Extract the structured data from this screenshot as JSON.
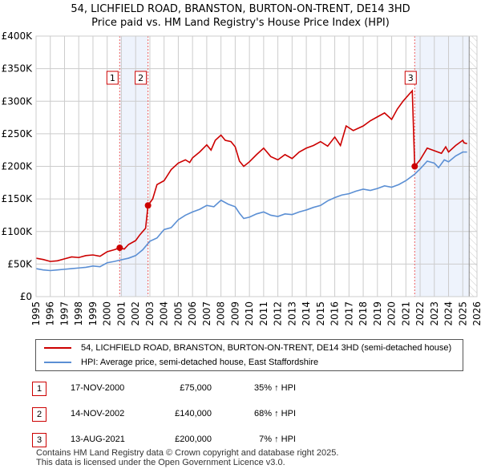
{
  "title": "54, LICHFIELD ROAD, BRANSTON, BURTON-ON-TRENT, DE14 3HD",
  "subtitle": "Price paid vs. HM Land Registry's House Price Index (HPI)",
  "chart_data": {
    "type": "line",
    "ylim": [
      0,
      400000
    ],
    "xlim": [
      1995,
      2026
    ],
    "grid": true,
    "yticks": [
      {
        "v": 0,
        "label": "£0"
      },
      {
        "v": 50000,
        "label": "£50K"
      },
      {
        "v": 100000,
        "label": "£100K"
      },
      {
        "v": 150000,
        "label": "£150K"
      },
      {
        "v": 200000,
        "label": "£200K"
      },
      {
        "v": 250000,
        "label": "£250K"
      },
      {
        "v": 300000,
        "label": "£300K"
      },
      {
        "v": 350000,
        "label": "£350K"
      },
      {
        "v": 400000,
        "label": "£400K"
      }
    ],
    "xticks": [
      "1995",
      "1996",
      "1997",
      "1998",
      "1999",
      "2000",
      "2001",
      "2002",
      "2003",
      "2004",
      "2005",
      "2006",
      "2007",
      "2008",
      "2009",
      "2010",
      "2011",
      "2012",
      "2013",
      "2014",
      "2015",
      "2016",
      "2017",
      "2018",
      "2019",
      "2020",
      "2021",
      "2022",
      "2023",
      "2024",
      "2025",
      "2026"
    ],
    "shaded": [
      [
        2000.88,
        2002.87
      ],
      [
        2021.62,
        2025.45
      ]
    ],
    "hatch_from": 2025.45,
    "series": [
      {
        "name": "54, LICHFIELD ROAD, BRANSTON, BURTON-ON-TRENT, DE14 3HD (semi-detached house)",
        "color": "#cc0000",
        "x": [
          1995,
          1995.5,
          1996,
          1996.5,
          1997,
          1997.5,
          1998,
          1998.5,
          1999,
          1999.5,
          2000,
          2000.5,
          2000.88,
          2001.2,
          2001.5,
          2002,
          2002.3,
          2002.7,
          2002.87,
          2003.2,
          2003.5,
          2004,
          2004.5,
          2005,
          2005.5,
          2005.8,
          2006,
          2006.5,
          2007,
          2007.3,
          2007.6,
          2008,
          2008.3,
          2008.7,
          2009,
          2009.3,
          2009.6,
          2010,
          2010.5,
          2011,
          2011.5,
          2012,
          2012.5,
          2013,
          2013.5,
          2014,
          2014.5,
          2015,
          2015.5,
          2016,
          2016.4,
          2016.8,
          2017.3,
          2018,
          2018.5,
          2019,
          2019.5,
          2020,
          2020.4,
          2020.8,
          2021.2,
          2021.45,
          2021.62,
          2022,
          2022.5,
          2023,
          2023.5,
          2023.8,
          2024,
          2024.5,
          2025,
          2025.1,
          2025.3
        ],
        "values": [
          59000,
          57000,
          54000,
          55000,
          58000,
          61000,
          60000,
          63000,
          64000,
          62000,
          69000,
          72000,
          75000,
          73000,
          80000,
          86000,
          95000,
          105000,
          140000,
          150000,
          172000,
          178000,
          195000,
          205000,
          210000,
          206000,
          213000,
          222000,
          233000,
          225000,
          240000,
          248000,
          240000,
          238000,
          230000,
          208000,
          200000,
          207000,
          218000,
          228000,
          215000,
          210000,
          218000,
          212000,
          222000,
          228000,
          232000,
          238000,
          231000,
          245000,
          232000,
          262000,
          255000,
          262000,
          270000,
          276000,
          282000,
          272000,
          288000,
          300000,
          310000,
          316000,
          200000,
          210000,
          228000,
          224000,
          220000,
          230000,
          222000,
          232000,
          240000,
          236000,
          235000
        ]
      },
      {
        "name": "HPI: Average price, semi-detached house, East Staffordshire",
        "color": "#5b8fd4",
        "x": [
          1995,
          1995.5,
          1996,
          1996.5,
          1997,
          1997.5,
          1998,
          1998.5,
          1999,
          1999.5,
          2000,
          2000.5,
          2000.88,
          2001.5,
          2002,
          2002.5,
          2003,
          2003.5,
          2004,
          2004.5,
          2005,
          2005.5,
          2006,
          2006.5,
          2007,
          2007.5,
          2008,
          2008.5,
          2009,
          2009.3,
          2009.6,
          2010,
          2010.5,
          2011,
          2011.5,
          2012,
          2012.5,
          2013,
          2013.5,
          2014,
          2014.5,
          2015,
          2015.5,
          2016,
          2016.5,
          2017,
          2017.5,
          2018,
          2018.5,
          2019,
          2019.5,
          2020,
          2020.5,
          2021,
          2021.62,
          2022,
          2022.5,
          2023,
          2023.3,
          2023.7,
          2024,
          2024.5,
          2025,
          2025.3
        ],
        "values": [
          43000,
          41000,
          40000,
          41000,
          42000,
          43000,
          44000,
          45000,
          47000,
          46000,
          52000,
          54000,
          56000,
          59000,
          63000,
          72000,
          85000,
          90000,
          103000,
          106000,
          118000,
          125000,
          130000,
          134000,
          140000,
          138000,
          148000,
          142000,
          138000,
          128000,
          120000,
          122000,
          127000,
          130000,
          125000,
          123000,
          127000,
          126000,
          130000,
          133000,
          137000,
          140000,
          147000,
          152000,
          156000,
          158000,
          162000,
          165000,
          163000,
          166000,
          170000,
          168000,
          172000,
          178000,
          188000,
          196000,
          208000,
          205000,
          198000,
          210000,
          207000,
          216000,
          222000,
          222000
        ]
      }
    ],
    "sales": [
      {
        "id": "1",
        "x": 2000.88,
        "value": 75000
      },
      {
        "id": "2",
        "x": 2002.87,
        "value": 140000
      },
      {
        "id": "3",
        "x": 2021.62,
        "value": 200000
      }
    ]
  },
  "table": [
    {
      "num": "1",
      "date": "17-NOV-2000",
      "price": "£75,000",
      "hpi": "35% ↑ HPI"
    },
    {
      "num": "2",
      "date": "14-NOV-2002",
      "price": "£140,000",
      "hpi": "68% ↑ HPI"
    },
    {
      "num": "3",
      "date": "13-AUG-2021",
      "price": "£200,000",
      "hpi": "7% ↑ HPI"
    }
  ],
  "footer": [
    "Contains HM Land Registry data © Crown copyright and database right 2025.",
    "This data is licensed under the Open Government Licence v3.0."
  ]
}
